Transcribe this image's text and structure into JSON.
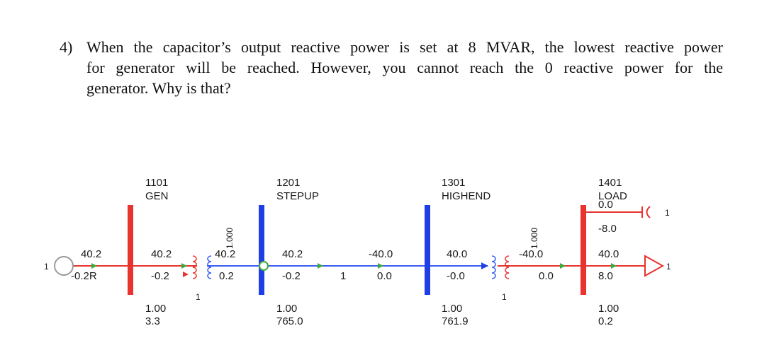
{
  "question": {
    "number": "4)",
    "lines": [
      "When the capacitor’s output reactive power is set at 8 MVAR, the lowest reactive power",
      "for generator will be reached. However, you cannot reach the 0 reactive power for the",
      "generator. Why is that?"
    ]
  },
  "diagram": {
    "colors": {
      "red_bus": "#e8332e",
      "blue_bus": "#1f3fe6",
      "red_line": "#e8332e",
      "blue_line": "#3a5cf0",
      "arrow": "#3cab3c"
    },
    "buses": [
      {
        "number": "1101",
        "name": "GEN",
        "voltage": "1.00",
        "angle": "3.3"
      },
      {
        "number": "1201",
        "name": "STEPUP",
        "voltage": "1.00",
        "angle": "765.0"
      },
      {
        "number": "1301",
        "name": "HIGHEND",
        "voltage": "1.00",
        "angle": "761.9"
      },
      {
        "number": "1401",
        "name": "LOAD",
        "voltage": "1.00",
        "angle": "0.2"
      }
    ],
    "generator": {
      "id": "1",
      "p": "40.2",
      "q": "-0.2R"
    },
    "t1": {
      "p_from": "40.2",
      "q_from": "-0.2",
      "p_to": "40.2",
      "q_to": "0.2",
      "tap": "1.000",
      "id": "1"
    },
    "line": {
      "p_from": "40.2",
      "q_from": "-0.2",
      "p_to": "-40.0",
      "q_to": "0.0",
      "id": "1"
    },
    "t2": {
      "p_from": "40.0",
      "q_from": "-0.0",
      "p_to": "-40.0",
      "q_to": "0.0",
      "tap": "1.000",
      "id": "1"
    },
    "shunt": {
      "value": "0.0",
      "q": "-8.0",
      "id": "1"
    },
    "load": {
      "p": "40.0",
      "q": "8.0",
      "id": "1"
    }
  }
}
